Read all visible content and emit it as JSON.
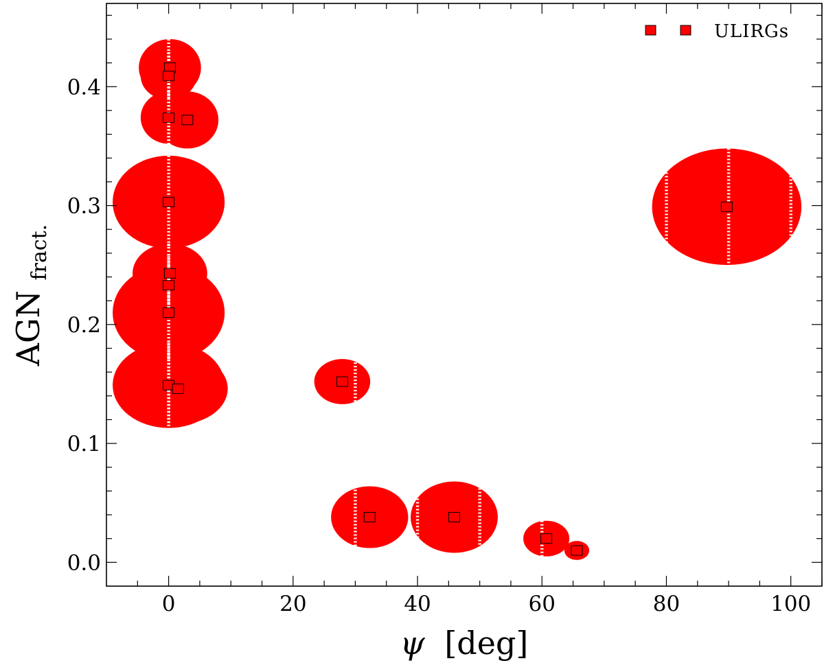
{
  "chart_data": {
    "type": "scatter",
    "xlabel": "ψ [deg]",
    "xlabel_symbol": "ψ",
    "xlabel_unit": "[deg]",
    "ylabel": "AGN fract.",
    "ylabel_main": "AGN",
    "ylabel_sub": "fract.",
    "xlim": [
      -10,
      105
    ],
    "ylim": [
      -0.02,
      0.47
    ],
    "x_ticks": [
      0,
      20,
      40,
      60,
      80,
      100
    ],
    "x_tick_labels": [
      "0",
      "20",
      "40",
      "60",
      "80",
      "100"
    ],
    "y_ticks": [
      0.0,
      0.1,
      0.2,
      0.3,
      0.4
    ],
    "y_tick_labels": [
      "0.0",
      "0.1",
      "0.2",
      "0.3",
      "0.4"
    ],
    "grid": false,
    "legend": {
      "position": "top-right",
      "label": "ULIRGs"
    },
    "colors": {
      "ellipse": "#ff0000",
      "marker_fill": "#ff0000",
      "marker_edge": "#000000",
      "hatch": "#ffffff"
    },
    "series": [
      {
        "name": "ULIRGs",
        "points": [
          {
            "x": 0.2,
            "y": 0.416,
            "dx": 5.0,
            "dy": 0.024
          },
          {
            "x": 0.0,
            "y": 0.409,
            "dx": 4.5,
            "dy": 0.02
          },
          {
            "x": 0.0,
            "y": 0.374,
            "dx": 4.5,
            "dy": 0.022
          },
          {
            "x": 3.0,
            "y": 0.372,
            "dx": 5.0,
            "dy": 0.024
          },
          {
            "x": 0.0,
            "y": 0.303,
            "dx": 9.0,
            "dy": 0.039
          },
          {
            "x": 89.7,
            "y": 0.299,
            "dx": 12.0,
            "dy": 0.049
          },
          {
            "x": 0.2,
            "y": 0.243,
            "dx": 6.0,
            "dy": 0.025
          },
          {
            "x": 0.0,
            "y": 0.233,
            "dx": 6.0,
            "dy": 0.025
          },
          {
            "x": 0.0,
            "y": 0.21,
            "dx": 9.0,
            "dy": 0.04
          },
          {
            "x": 0.0,
            "y": 0.149,
            "dx": 9.0,
            "dy": 0.036
          },
          {
            "x": 1.5,
            "y": 0.146,
            "dx": 8.0,
            "dy": 0.03
          },
          {
            "x": 27.9,
            "y": 0.152,
            "dx": 4.5,
            "dy": 0.019
          },
          {
            "x": 32.3,
            "y": 0.038,
            "dx": 6.2,
            "dy": 0.026
          },
          {
            "x": 45.9,
            "y": 0.038,
            "dx": 7.0,
            "dy": 0.03
          },
          {
            "x": 60.7,
            "y": 0.02,
            "dx": 3.7,
            "dy": 0.015
          },
          {
            "x": 65.6,
            "y": 0.01,
            "dx": 2.0,
            "dy": 0.008
          }
        ]
      }
    ]
  }
}
